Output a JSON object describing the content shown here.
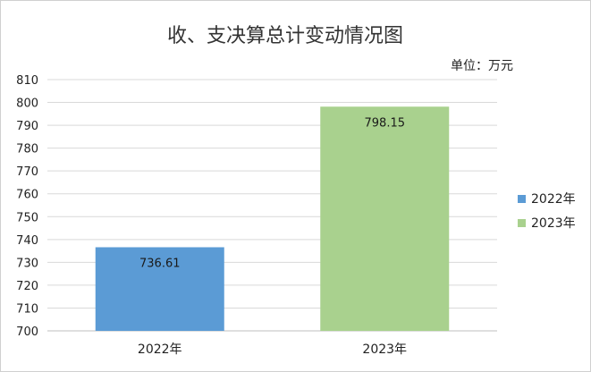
{
  "chart_data": {
    "type": "bar",
    "title": "收、支决算总计变动情况图",
    "unit_label": "单位：万元",
    "categories": [
      "2022年",
      "2023年"
    ],
    "values": [
      736.61,
      798.15
    ],
    "data_labels": [
      "736.61",
      "798.15"
    ],
    "colors": [
      "#5b9bd5",
      "#a9d18e"
    ],
    "ylim": [
      700,
      810
    ],
    "yticks": [
      700,
      710,
      720,
      730,
      740,
      750,
      760,
      770,
      780,
      790,
      800,
      810
    ],
    "grid": true,
    "legend": {
      "placement": "right",
      "entries": [
        {
          "label": "2022年",
          "color": "#5b9bd5"
        },
        {
          "label": "2023年",
          "color": "#a9d18e"
        }
      ]
    },
    "xlabel": "",
    "ylabel": ""
  }
}
